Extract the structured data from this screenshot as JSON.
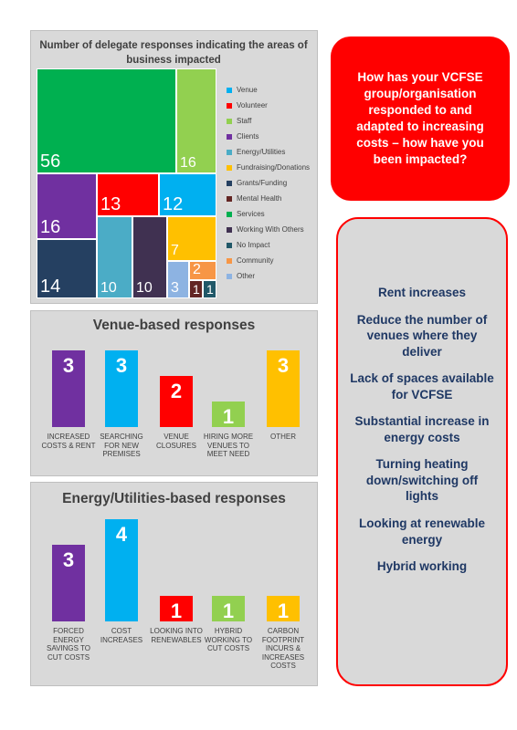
{
  "chart_data": [
    {
      "type": "treemap",
      "title": "Number of delegate responses indicating the areas of business impacted",
      "categories": [
        "Venue",
        "Volunteer",
        "Staff",
        "Clients",
        "Energy/Utilities",
        "Fundraising/Donations",
        "Grants/Funding",
        "Mental Health",
        "Services",
        "Working With Others",
        "No Impact",
        "Community",
        "Other"
      ],
      "values": [
        12,
        13,
        16,
        16,
        10,
        7,
        14,
        1,
        56,
        10,
        1,
        2,
        3
      ],
      "colors": [
        "#00b0f0",
        "#ff0000",
        "#92d050",
        "#7030a0",
        "#4bacc6",
        "#ffc000",
        "#254061",
        "#632523",
        "#00b050",
        "#403151",
        "#215868",
        "#f79646",
        "#8db3e2"
      ],
      "legend": "right"
    },
    {
      "type": "bar",
      "title": "Venue-based responses",
      "categories": [
        "INCREASED COSTS & RENT",
        "SEARCHING FOR NEW PREMISES",
        "VENUE CLOSURES",
        "HIRING MORE VENUES TO MEET NEED",
        "OTHER"
      ],
      "values": [
        3,
        3,
        2,
        1,
        3
      ],
      "colors": [
        "#7030a0",
        "#00b0f0",
        "#ff0000",
        "#92d050",
        "#ffc000"
      ]
    },
    {
      "type": "bar",
      "title": "Energy/Utilities-based responses",
      "categories": [
        "FORCED ENERGY SAVINGS TO CUT COSTS",
        "COST INCREASES",
        "LOOKING INTO RENEWABLES",
        "HYBRID WORKING TO CUT COSTS",
        "CARBON FOOTPRINT INCURS & INCREASES COSTS"
      ],
      "values": [
        3,
        4,
        1,
        1,
        1
      ],
      "colors": [
        "#7030a0",
        "#00b0f0",
        "#ff0000",
        "#92d050",
        "#ffc000"
      ]
    }
  ],
  "callout": {
    "question": "How has your VCFSE group/organisation responded to and adapted to increasing costs – how have you been impacted?",
    "points": [
      "Rent increases",
      "Reduce the number of venues where they deliver",
      "Lack of spaces available for VCFSE",
      "Substantial increase in energy costs",
      "Turning heating down/switching off lights",
      "Looking at renewable energy",
      "Hybrid working"
    ]
  }
}
